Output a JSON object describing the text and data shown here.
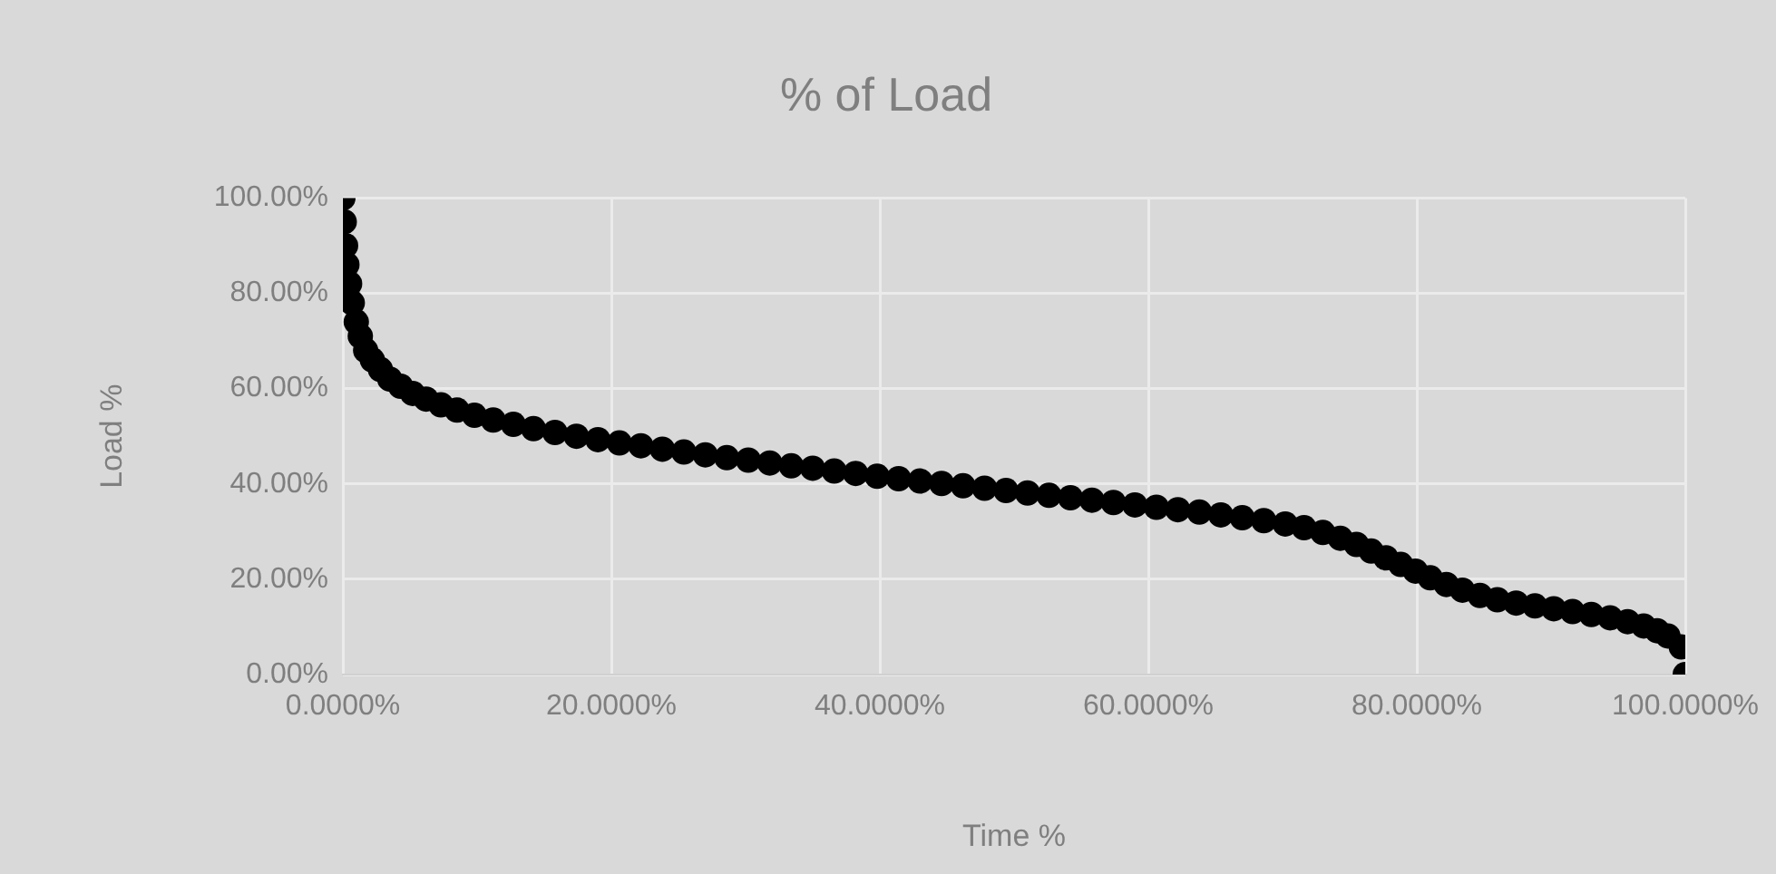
{
  "chart_data": {
    "type": "scatter",
    "title": "% of Load",
    "xlabel": "Time %",
    "ylabel": "Load %",
    "x": [
      0,
      0.1,
      0.2,
      0.3,
      0.5,
      0.7,
      1,
      1.3,
      1.7,
      2.2,
      2.8,
      3.5,
      4.3,
      5.2,
      6.2,
      7.3,
      8.5,
      9.8,
      11.2,
      12.7,
      14.2,
      15.8,
      17.4,
      19,
      20.6,
      22.2,
      23.8,
      25.4,
      27,
      28.6,
      30.2,
      31.8,
      33.4,
      35,
      36.6,
      38.2,
      39.8,
      41.4,
      43,
      44.6,
      46.2,
      47.8,
      49.4,
      51,
      52.6,
      54.2,
      55.8,
      57.4,
      59,
      60.6,
      62.2,
      63.8,
      65.4,
      67,
      68.6,
      70.2,
      71.6,
      73,
      74.3,
      75.5,
      76.6,
      77.7,
      78.8,
      79.9,
      81,
      82.2,
      83.4,
      84.7,
      86,
      87.4,
      88.8,
      90.2,
      91.6,
      93,
      94.4,
      95.7,
      96.9,
      97.9,
      98.7,
      99.7,
      100
    ],
    "series": [
      {
        "color": "#000000",
        "values": [
          100,
          95,
          90,
          86,
          82,
          78,
          74,
          71,
          68,
          66,
          64,
          62,
          60.5,
          59,
          57.8,
          56.6,
          55.5,
          54.4,
          53.4,
          52.5,
          51.6,
          50.8,
          50,
          49.3,
          48.6,
          48,
          47.3,
          46.7,
          46.1,
          45.5,
          45,
          44.4,
          43.8,
          43.3,
          42.7,
          42.2,
          41.6,
          41.1,
          40.6,
          40.1,
          39.6,
          39.1,
          38.6,
          38.1,
          37.6,
          37.1,
          36.6,
          36.1,
          35.6,
          35.1,
          34.6,
          34.1,
          33.5,
          32.9,
          32.3,
          31.6,
          30.8,
          29.8,
          28.6,
          27.3,
          25.9,
          24.5,
          23.1,
          21.7,
          20.3,
          18.9,
          17.7,
          16.6,
          15.7,
          15,
          14.4,
          13.8,
          13.2,
          12.6,
          11.9,
          11.1,
          10.2,
          9.2,
          8.1,
          5.8,
          0
        ]
      }
    ],
    "xlim": [
      0,
      100
    ],
    "xticks": [
      {
        "value": 0,
        "label": "0.0000%"
      },
      {
        "value": 20,
        "label": "20.0000%"
      },
      {
        "value": 40,
        "label": "40.0000%"
      },
      {
        "value": 60,
        "label": "60.0000%"
      },
      {
        "value": 80,
        "label": "80.0000%"
      },
      {
        "value": 100,
        "label": "100.0000%"
      }
    ],
    "ylim": [
      0,
      100
    ],
    "yticks": [
      {
        "value": 0,
        "label": "0.00%"
      },
      {
        "value": 20,
        "label": "20.00%"
      },
      {
        "value": 40,
        "label": "40.00%"
      },
      {
        "value": 60,
        "label": "60.00%"
      },
      {
        "value": 80,
        "label": "80.00%"
      },
      {
        "value": 100,
        "label": "100.00%"
      }
    ],
    "grid": true,
    "marker": "circle"
  }
}
